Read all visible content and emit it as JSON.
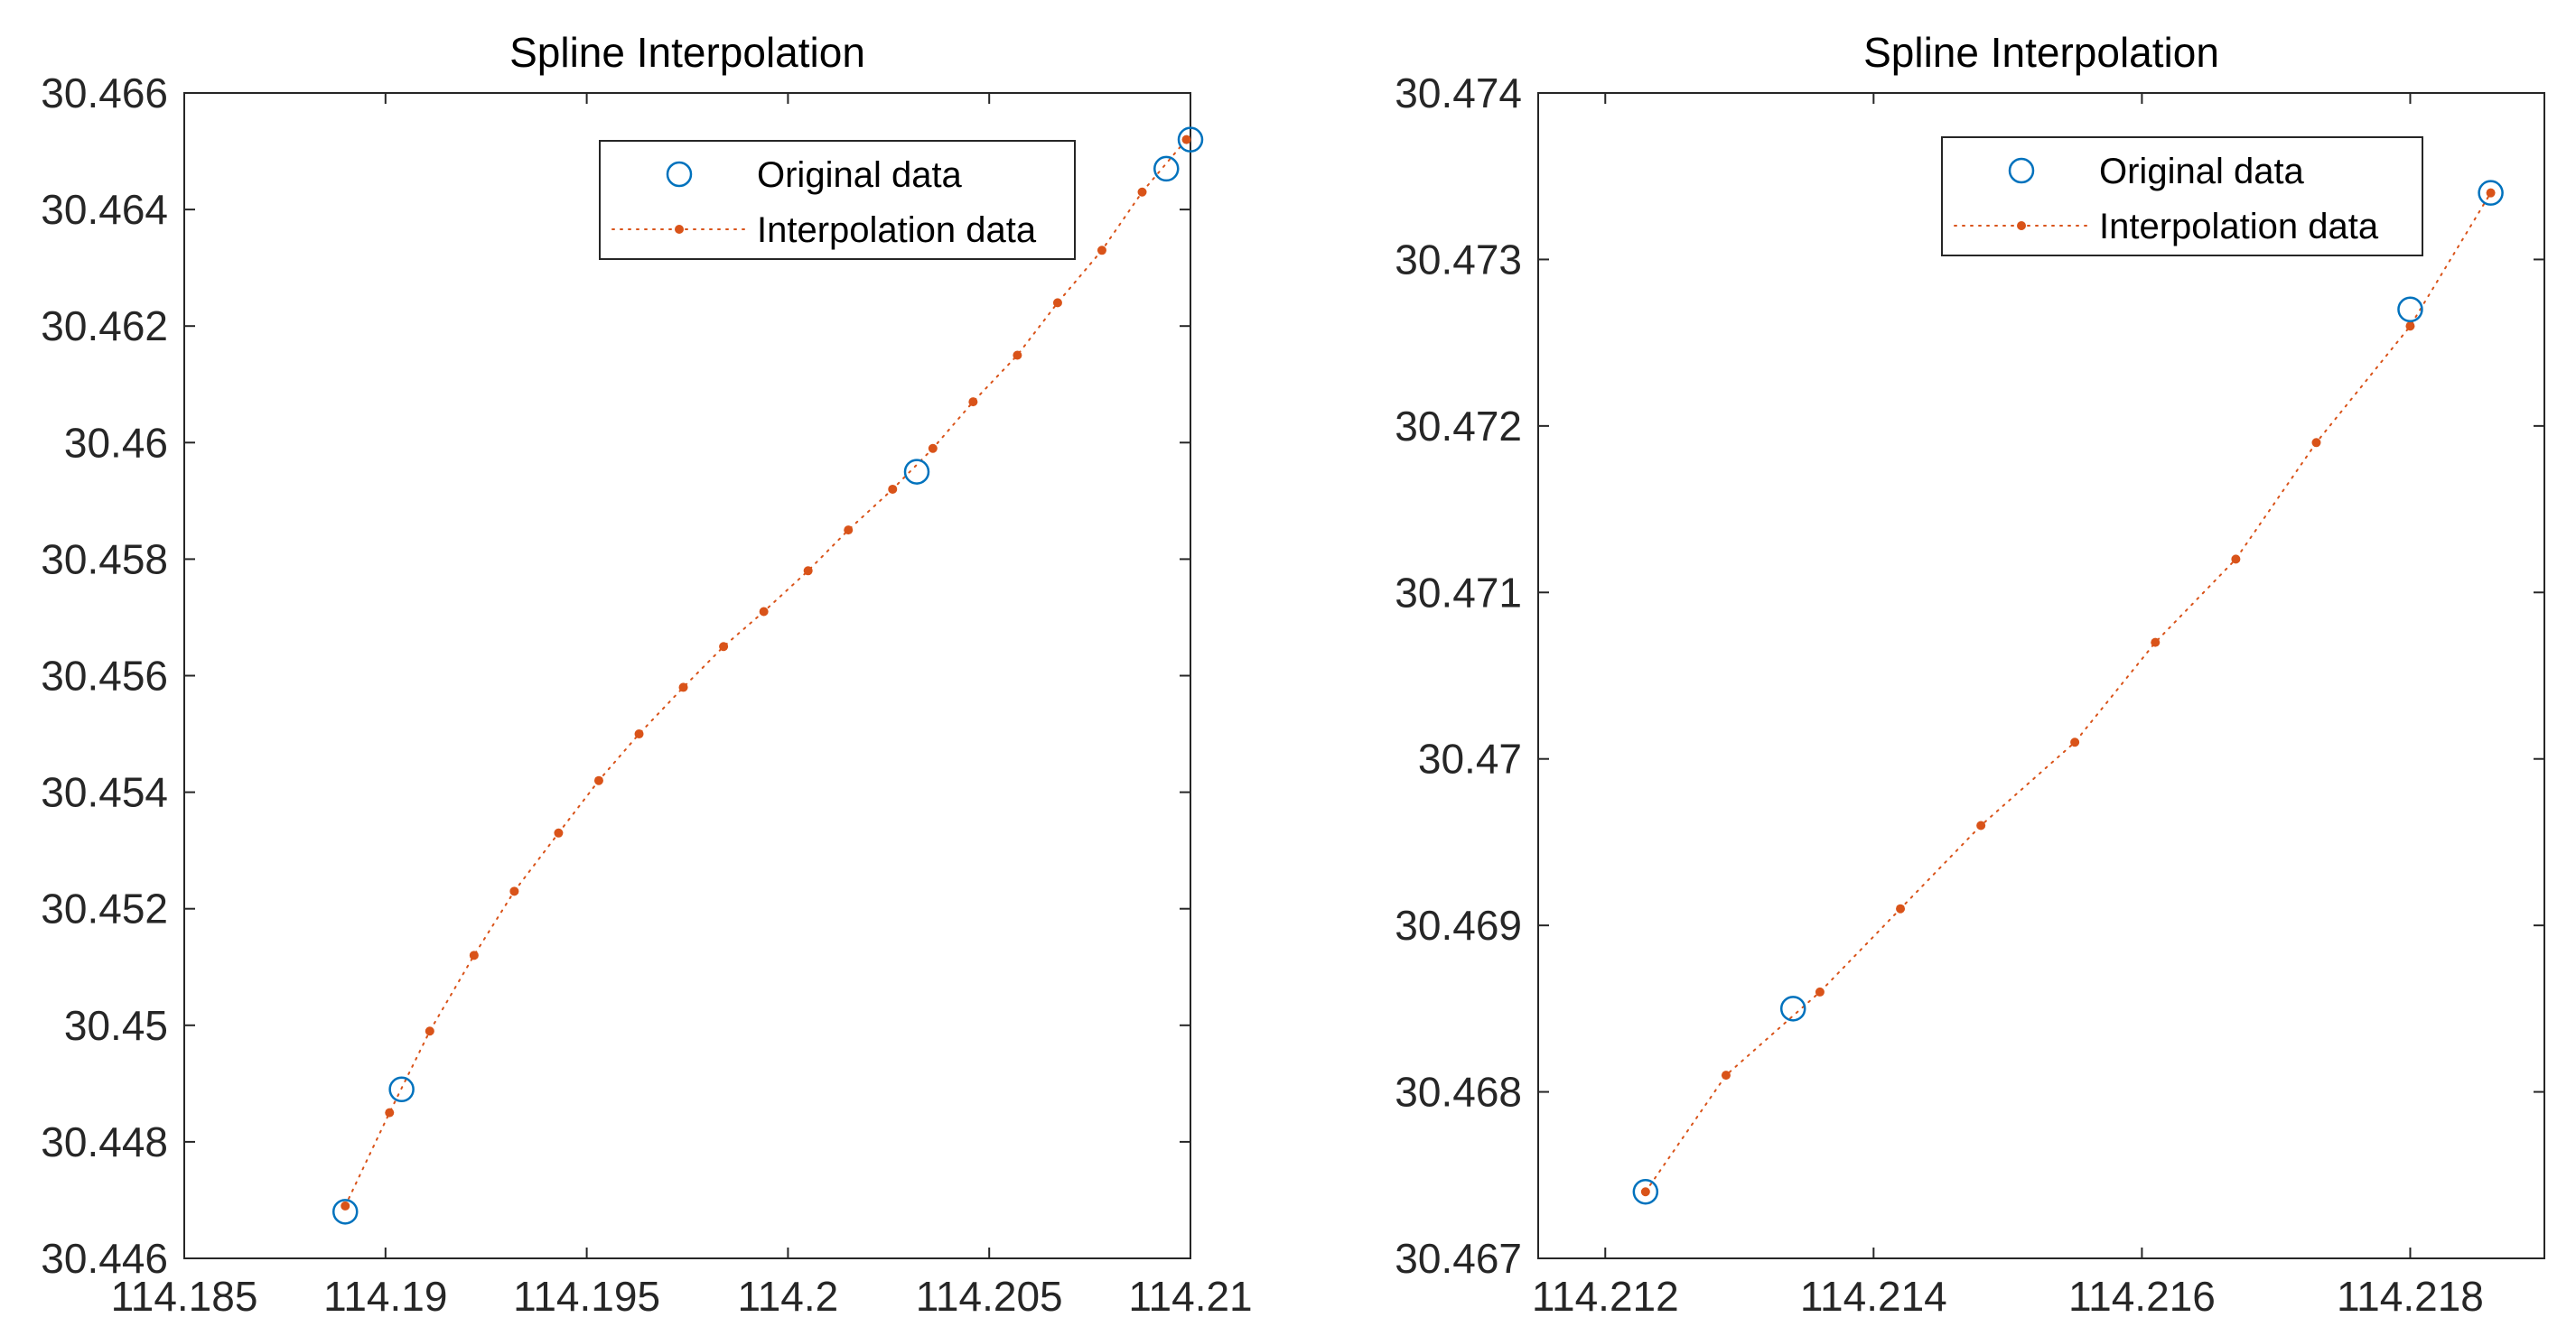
{
  "colors": {
    "original": "#0072BD",
    "interp": "#D95319",
    "axis": "#262626"
  },
  "chart_data": [
    {
      "type": "line",
      "title": "Spline Interpolation",
      "xlabel": "",
      "ylabel": "",
      "xlim": [
        114.185,
        114.21
      ],
      "ylim": [
        30.446,
        30.466
      ],
      "xticks": [
        114.185,
        114.19,
        114.195,
        114.2,
        114.205,
        114.21
      ],
      "xtick_labels": [
        "114.185",
        "114.19",
        "114.195",
        "114.2",
        "114.205",
        "114.21"
      ],
      "yticks": [
        30.446,
        30.448,
        30.45,
        30.452,
        30.454,
        30.456,
        30.458,
        30.46,
        30.462,
        30.464,
        30.466
      ],
      "ytick_labels": [
        "30.446",
        "30.448",
        "30.45",
        "30.452",
        "30.454",
        "30.456",
        "30.458",
        "30.46",
        "30.462",
        "30.464",
        "30.466"
      ],
      "legend": {
        "location": "top-right",
        "entries": [
          "Original data",
          "Interpolation data"
        ]
      },
      "series": [
        {
          "name": "Original data",
          "style": "circle-markers",
          "x": [
            114.189,
            114.1904,
            114.2032,
            114.2094,
            114.21
          ],
          "y": [
            30.4468,
            30.4489,
            30.4595,
            30.4647,
            30.4652
          ]
        },
        {
          "name": "Interpolation data",
          "style": "dotted-line-dots",
          "x": [
            114.189,
            114.1901,
            114.1911,
            114.1922,
            114.1932,
            114.1943,
            114.1953,
            114.1963,
            114.1974,
            114.1984,
            114.1994,
            114.2005,
            114.2015,
            114.2026,
            114.2036,
            114.2046,
            114.2057,
            114.2067,
            114.2078,
            114.2088,
            114.2099
          ],
          "y": [
            30.4469,
            30.4485,
            30.4499,
            30.4512,
            30.4523,
            30.4533,
            30.4542,
            30.455,
            30.4558,
            30.4565,
            30.4571,
            30.4578,
            30.4585,
            30.4592,
            30.4599,
            30.4607,
            30.4615,
            30.4624,
            30.4633,
            30.4643,
            30.4652
          ]
        }
      ]
    },
    {
      "type": "line",
      "title": "Spline Interpolation",
      "xlabel": "",
      "ylabel": "",
      "xlim": [
        114.2115,
        114.219
      ],
      "ylim": [
        30.467,
        30.474
      ],
      "xticks": [
        114.212,
        114.214,
        114.216,
        114.218
      ],
      "xtick_labels": [
        "114.212",
        "114.214",
        "114.216",
        "114.218"
      ],
      "yticks": [
        30.467,
        30.468,
        30.469,
        30.47,
        30.471,
        30.472,
        30.473,
        30.474
      ],
      "ytick_labels": [
        "30.467",
        "30.468",
        "30.469",
        "30.47",
        "30.471",
        "30.472",
        "30.473",
        "30.474"
      ],
      "legend": {
        "location": "top-right",
        "entries": [
          "Original data",
          "Interpolation data"
        ]
      },
      "series": [
        {
          "name": "Original data",
          "style": "circle-markers",
          "x": [
            114.2123,
            114.2134,
            114.218,
            114.2186
          ],
          "y": [
            30.4674,
            30.4685,
            30.4727,
            30.4734
          ]
        },
        {
          "name": "Interpolation data",
          "style": "dotted-line-dots",
          "x": [
            114.2123,
            114.2129,
            114.2136,
            114.2142,
            114.2148,
            114.2155,
            114.2161,
            114.2167,
            114.2173,
            114.218,
            114.2186
          ],
          "y": [
            30.4674,
            30.4681,
            30.4686,
            30.4691,
            30.4696,
            30.4701,
            30.4707,
            30.4712,
            30.4719,
            30.4726,
            30.4734
          ]
        }
      ]
    }
  ]
}
